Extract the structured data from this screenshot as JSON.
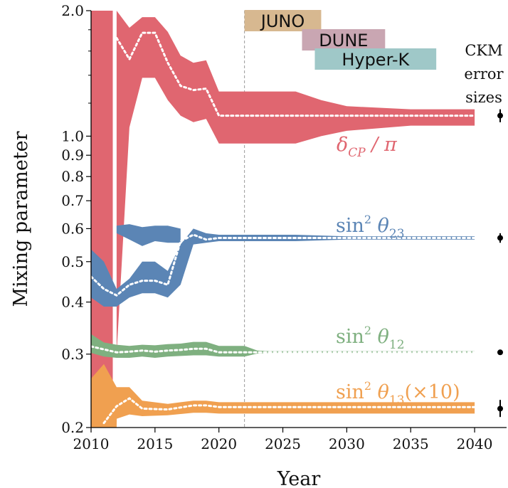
{
  "chart_data": {
    "type": "area",
    "xlabel": "Year",
    "ylabel": "Mixing parameter",
    "xlim": [
      2010,
      2042.5
    ],
    "ylim": [
      0.2,
      2.0
    ],
    "yscale": "log",
    "x_ticks": [
      2010,
      2015,
      2020,
      2025,
      2030,
      2035,
      2040
    ],
    "y_ticks_labeled": [
      {
        "value": 0.2,
        "label": "0.2"
      },
      {
        "value": 0.3,
        "label": "0.3"
      },
      {
        "value": 0.4,
        "label": "0.4"
      },
      {
        "value": 0.5,
        "label": "0.5"
      },
      {
        "value": 0.6,
        "label": "0.6"
      },
      {
        "value": 0.7,
        "label": "0.7"
      },
      {
        "value": 0.8,
        "label": "0.8"
      },
      {
        "value": 0.9,
        "label": "0.9"
      },
      {
        "value": 1.0,
        "label": "1.0"
      },
      {
        "value": 2.0,
        "label": "2.0"
      }
    ],
    "y_ticks_minor": [
      1.2,
      1.4,
      1.6,
      1.8
    ],
    "reference_line_x": 2022,
    "series": [
      {
        "key": "dcp",
        "name": "δ_CP / π",
        "color": "#e06670",
        "bands": [
          {
            "x": [
              2010,
              2011,
              2011.7
            ],
            "lower": [
              0.2,
              0.2,
              0.2
            ],
            "upper": [
              2.0,
              2.0,
              2.0
            ]
          },
          {
            "x": [
              2012,
              2013,
              2014,
              2015,
              2016,
              2017,
              2018,
              2019,
              2020,
              2022,
              2024,
              2026,
              2028,
              2030,
              2035,
              2040
            ],
            "lower": [
              0.3,
              1.05,
              1.38,
              1.38,
              1.22,
              1.12,
              1.08,
              1.1,
              0.96,
              0.96,
              0.96,
              0.96,
              1.0,
              1.03,
              1.06,
              1.06
            ],
            "upper": [
              2.0,
              1.82,
              1.93,
              1.93,
              1.78,
              1.56,
              1.5,
              1.52,
              1.28,
              1.28,
              1.28,
              1.28,
              1.22,
              1.18,
              1.16,
              1.16
            ]
          }
        ],
        "central": {
          "x": [
            2012,
            2013,
            2014,
            2015,
            2016,
            2017,
            2018,
            2019,
            2020,
            2025,
            2030,
            2035,
            2040
          ],
          "y": [
            1.72,
            1.53,
            1.77,
            1.77,
            1.5,
            1.32,
            1.29,
            1.3,
            1.12,
            1.12,
            1.12,
            1.12,
            1.12
          ]
        }
      },
      {
        "key": "s23",
        "name": "sin² θ₂₃",
        "color": "#5b85b5",
        "bands": [
          {
            "x": [
              2010,
              2011,
              2012,
              2013,
              2014,
              2015,
              2016,
              2017,
              2018,
              2019,
              2020,
              2022,
              2026,
              2030,
              2040
            ],
            "lower": [
              0.41,
              0.39,
              0.39,
              0.41,
              0.42,
              0.42,
              0.41,
              0.44,
              0.55,
              0.555,
              0.56,
              0.56,
              0.56,
              0.565,
              0.565
            ],
            "upper": [
              0.535,
              0.5,
              0.43,
              0.455,
              0.5,
              0.5,
              0.475,
              0.55,
              0.6,
              0.585,
              0.58,
              0.58,
              0.58,
              0.575,
              0.575
            ]
          },
          {
            "x": [
              2012,
              2013,
              2014,
              2015,
              2016,
              2017
            ],
            "lower": [
              0.585,
              0.565,
              0.545,
              0.56,
              0.555,
              0.555
            ],
            "upper": [
              0.61,
              0.615,
              0.605,
              0.61,
              0.61,
              0.6
            ]
          }
        ],
        "central": {
          "x": [
            2010,
            2011,
            2012,
            2013,
            2014,
            2015,
            2016,
            2017,
            2018,
            2019,
            2020,
            2025,
            2030,
            2040
          ],
          "y": [
            0.46,
            0.43,
            0.415,
            0.44,
            0.45,
            0.45,
            0.44,
            0.56,
            0.58,
            0.565,
            0.57,
            0.57,
            0.57,
            0.57
          ]
        }
      },
      {
        "key": "s12",
        "name": "sin² θ₁₂",
        "color": "#7fb080",
        "bands": [
          {
            "x": [
              2010,
              2011,
              2012,
              2013,
              2014,
              2015,
              2016,
              2017,
              2018,
              2019,
              2020,
              2022,
              2023,
              2024,
              2030,
              2040
            ],
            "lower": [
              0.302,
              0.296,
              0.294,
              0.294,
              0.296,
              0.294,
              0.296,
              0.297,
              0.298,
              0.298,
              0.296,
              0.296,
              0.301,
              0.302,
              0.302,
              0.302
            ],
            "upper": [
              0.335,
              0.32,
              0.316,
              0.314,
              0.316,
              0.315,
              0.317,
              0.318,
              0.321,
              0.321,
              0.314,
              0.314,
              0.306,
              0.305,
              0.305,
              0.305
            ]
          }
        ],
        "central": {
          "x": [
            2010,
            2011,
            2012,
            2013,
            2014,
            2015,
            2016,
            2017,
            2018,
            2019,
            2020,
            2022,
            2024,
            2030,
            2040
          ],
          "y": [
            0.313,
            0.308,
            0.303,
            0.304,
            0.306,
            0.304,
            0.306,
            0.307,
            0.309,
            0.309,
            0.303,
            0.303,
            0.303,
            0.303,
            0.303
          ]
        }
      },
      {
        "key": "s13",
        "name": "sin² θ₁₃ (×10)",
        "color": "#f0a050",
        "bands": [
          {
            "x": [
              2010,
              2011,
              2012,
              2012.01,
              2013,
              2014,
              2016,
              2018,
              2019,
              2020,
              2025,
              2030,
              2040
            ],
            "lower": [
              0.2,
              0.2,
              0.2,
              0.21,
              0.215,
              0.213,
              0.214,
              0.217,
              0.217,
              0.216,
              0.216,
              0.216,
              0.216
            ],
            "upper": [
              0.262,
              0.284,
              0.25,
              0.25,
              0.25,
              0.232,
              0.228,
              0.232,
              0.232,
              0.23,
              0.23,
              0.23,
              0.23
            ]
          }
        ],
        "central": {
          "x": [
            2011,
            2012,
            2013,
            2014,
            2016,
            2018,
            2019,
            2020,
            2025,
            2030,
            2040
          ],
          "y": [
            0.205,
            0.225,
            0.235,
            0.222,
            0.221,
            0.226,
            0.226,
            0.224,
            0.224,
            0.224,
            0.224
          ]
        }
      }
    ],
    "ckm_points": [
      {
        "key": "dcp",
        "x": 2042,
        "y": 1.12,
        "lower": 1.08,
        "upper": 1.16
      },
      {
        "key": "s23",
        "x": 2042,
        "y": 0.57,
        "lower": 0.555,
        "upper": 0.585
      },
      {
        "key": "s12",
        "x": 2042,
        "y": 0.303,
        "lower": 0.302,
        "upper": 0.304
      },
      {
        "key": "s13",
        "x": 2042,
        "y": 0.222,
        "lower": 0.212,
        "upper": 0.233
      }
    ],
    "experiments": [
      {
        "name": "JUNO",
        "start": 2022,
        "end": 2028,
        "color": "#d7b890"
      },
      {
        "name": "DUNE",
        "start": 2026.5,
        "end": 2033,
        "color": "#c9a6b2"
      },
      {
        "name": "Hyper-K",
        "start": 2027.5,
        "end": 2037,
        "color": "#9fc8c8"
      }
    ],
    "ckm_label": [
      "CKM",
      "error",
      "sizes"
    ]
  }
}
